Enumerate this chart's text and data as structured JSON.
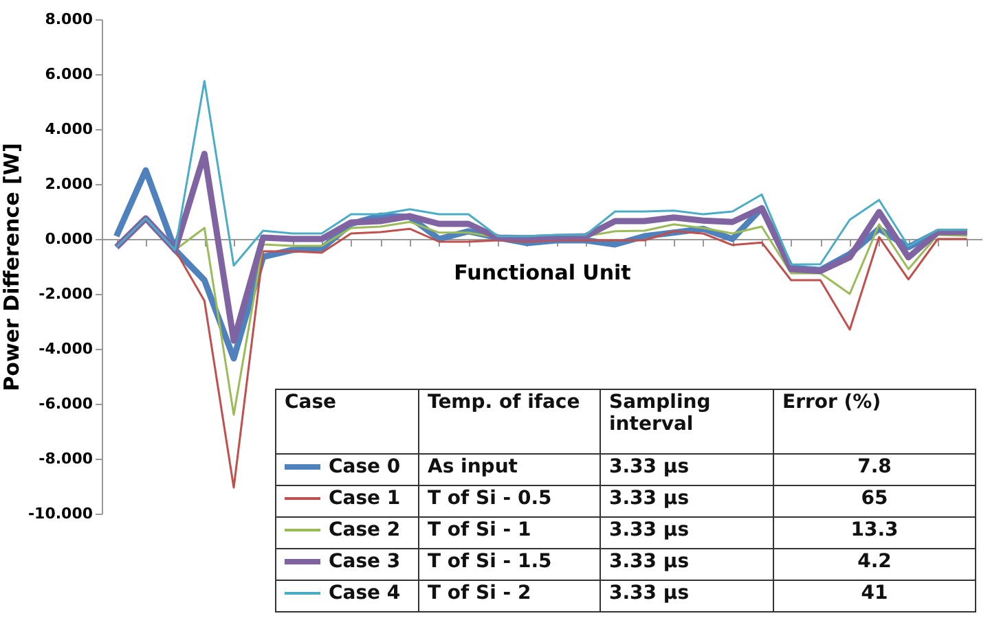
{
  "chart_data": {
    "type": "line",
    "xlabel": "Functional Unit",
    "ylabel": "Power Difference [W]",
    "categories": [
      null,
      null,
      null,
      null,
      null,
      null,
      null,
      null,
      null,
      null,
      null,
      null,
      null,
      null,
      null,
      null,
      null,
      null,
      null,
      null,
      null,
      null,
      null,
      null,
      null,
      null,
      null,
      null,
      null,
      null
    ],
    "ylim": [
      -10,
      8
    ],
    "yticks": [
      {
        "value": -10,
        "label": "-10.000"
      },
      {
        "value": -8,
        "label": "-8.000"
      },
      {
        "value": -6,
        "label": "-6.000"
      },
      {
        "value": -4,
        "label": "-4.000"
      },
      {
        "value": -2,
        "label": "-2.000"
      },
      {
        "value": 0,
        "label": "0.000"
      },
      {
        "value": 2,
        "label": "2.000"
      },
      {
        "value": 4,
        "label": "4.000"
      },
      {
        "value": 6,
        "label": "6.000"
      },
      {
        "value": 8,
        "label": "8.000"
      }
    ],
    "legend": "bottom left",
    "series": [
      {
        "name": "Case 0",
        "color": "#4f81bd",
        "values": [
          0.1,
          2.5,
          -0.4,
          -1.5,
          -4.35,
          -0.65,
          -0.4,
          -0.35,
          0.55,
          0.85,
          0.8,
          0,
          0.28,
          0.05,
          -0.15,
          -0.05,
          -0.05,
          -0.2,
          0.1,
          0.23,
          0.37,
          0,
          1.12,
          -1.05,
          -1.13,
          -0.55,
          0.37,
          -0.3,
          0.25,
          0.25
        ]
      },
      {
        "name": "Case 1",
        "color": "#c0504d",
        "values": [
          -0.3,
          0.75,
          -0.4,
          -2.25,
          -9.05,
          -0.45,
          -0.45,
          -0.5,
          0.2,
          0.25,
          0.37,
          -0.1,
          -0.1,
          -0.05,
          -0.1,
          -0.05,
          -0.05,
          -0.05,
          -0.05,
          0.28,
          0.2,
          -0.22,
          -0.13,
          -1.5,
          -1.5,
          -3.3,
          0.07,
          -1.47,
          0,
          0
        ]
      },
      {
        "name": "Case 2",
        "color": "#9bbb59",
        "values": [
          -0.3,
          0.75,
          -0.4,
          0.4,
          -6.4,
          -0.2,
          -0.25,
          -0.25,
          0.4,
          0.45,
          0.62,
          0.23,
          0.23,
          0.05,
          0.03,
          0.07,
          0.1,
          0.28,
          0.3,
          0.53,
          0.4,
          0.2,
          0.45,
          -1.25,
          -1.25,
          -2,
          0.53,
          -1.1,
          0.15,
          0.12
        ]
      },
      {
        "name": "Case 3",
        "color": "#8064a2",
        "values": [
          -0.3,
          0.75,
          -0.4,
          3.1,
          -3.7,
          0.05,
          0,
          0,
          0.6,
          0.65,
          0.83,
          0.55,
          0.55,
          0.05,
          0.03,
          0.07,
          0.1,
          0.65,
          0.65,
          0.78,
          0.67,
          0.62,
          1.12,
          -1.1,
          -1.17,
          -0.67,
          0.98,
          -0.67,
          0.25,
          0.25
        ]
      },
      {
        "name": "Case 4",
        "color": "#4bacc6",
        "values": [
          -0.3,
          0.75,
          -0.4,
          5.75,
          -0.97,
          0.3,
          0.2,
          0.2,
          0.9,
          0.9,
          1.08,
          0.9,
          0.9,
          0.1,
          0.1,
          0.15,
          0.15,
          1,
          1,
          1.03,
          0.9,
          1,
          1.62,
          -0.93,
          -0.92,
          0.7,
          1.42,
          -0.27,
          0.33,
          0.33
        ]
      }
    ],
    "annotations": [
      "Case",
      "Temp. of iface",
      "Sampling interval",
      "Error (%)",
      "As input",
      "3.33 µs",
      "7.8",
      "T of Si - 0.5",
      "3.33 µs",
      "65",
      "T of Si - 1",
      "3.33 µs",
      "13.3",
      "T of Si - 1.5",
      "3.33 µs",
      "4.2",
      "T of Si - 2",
      "3.33 µs",
      "41"
    ]
  }
}
